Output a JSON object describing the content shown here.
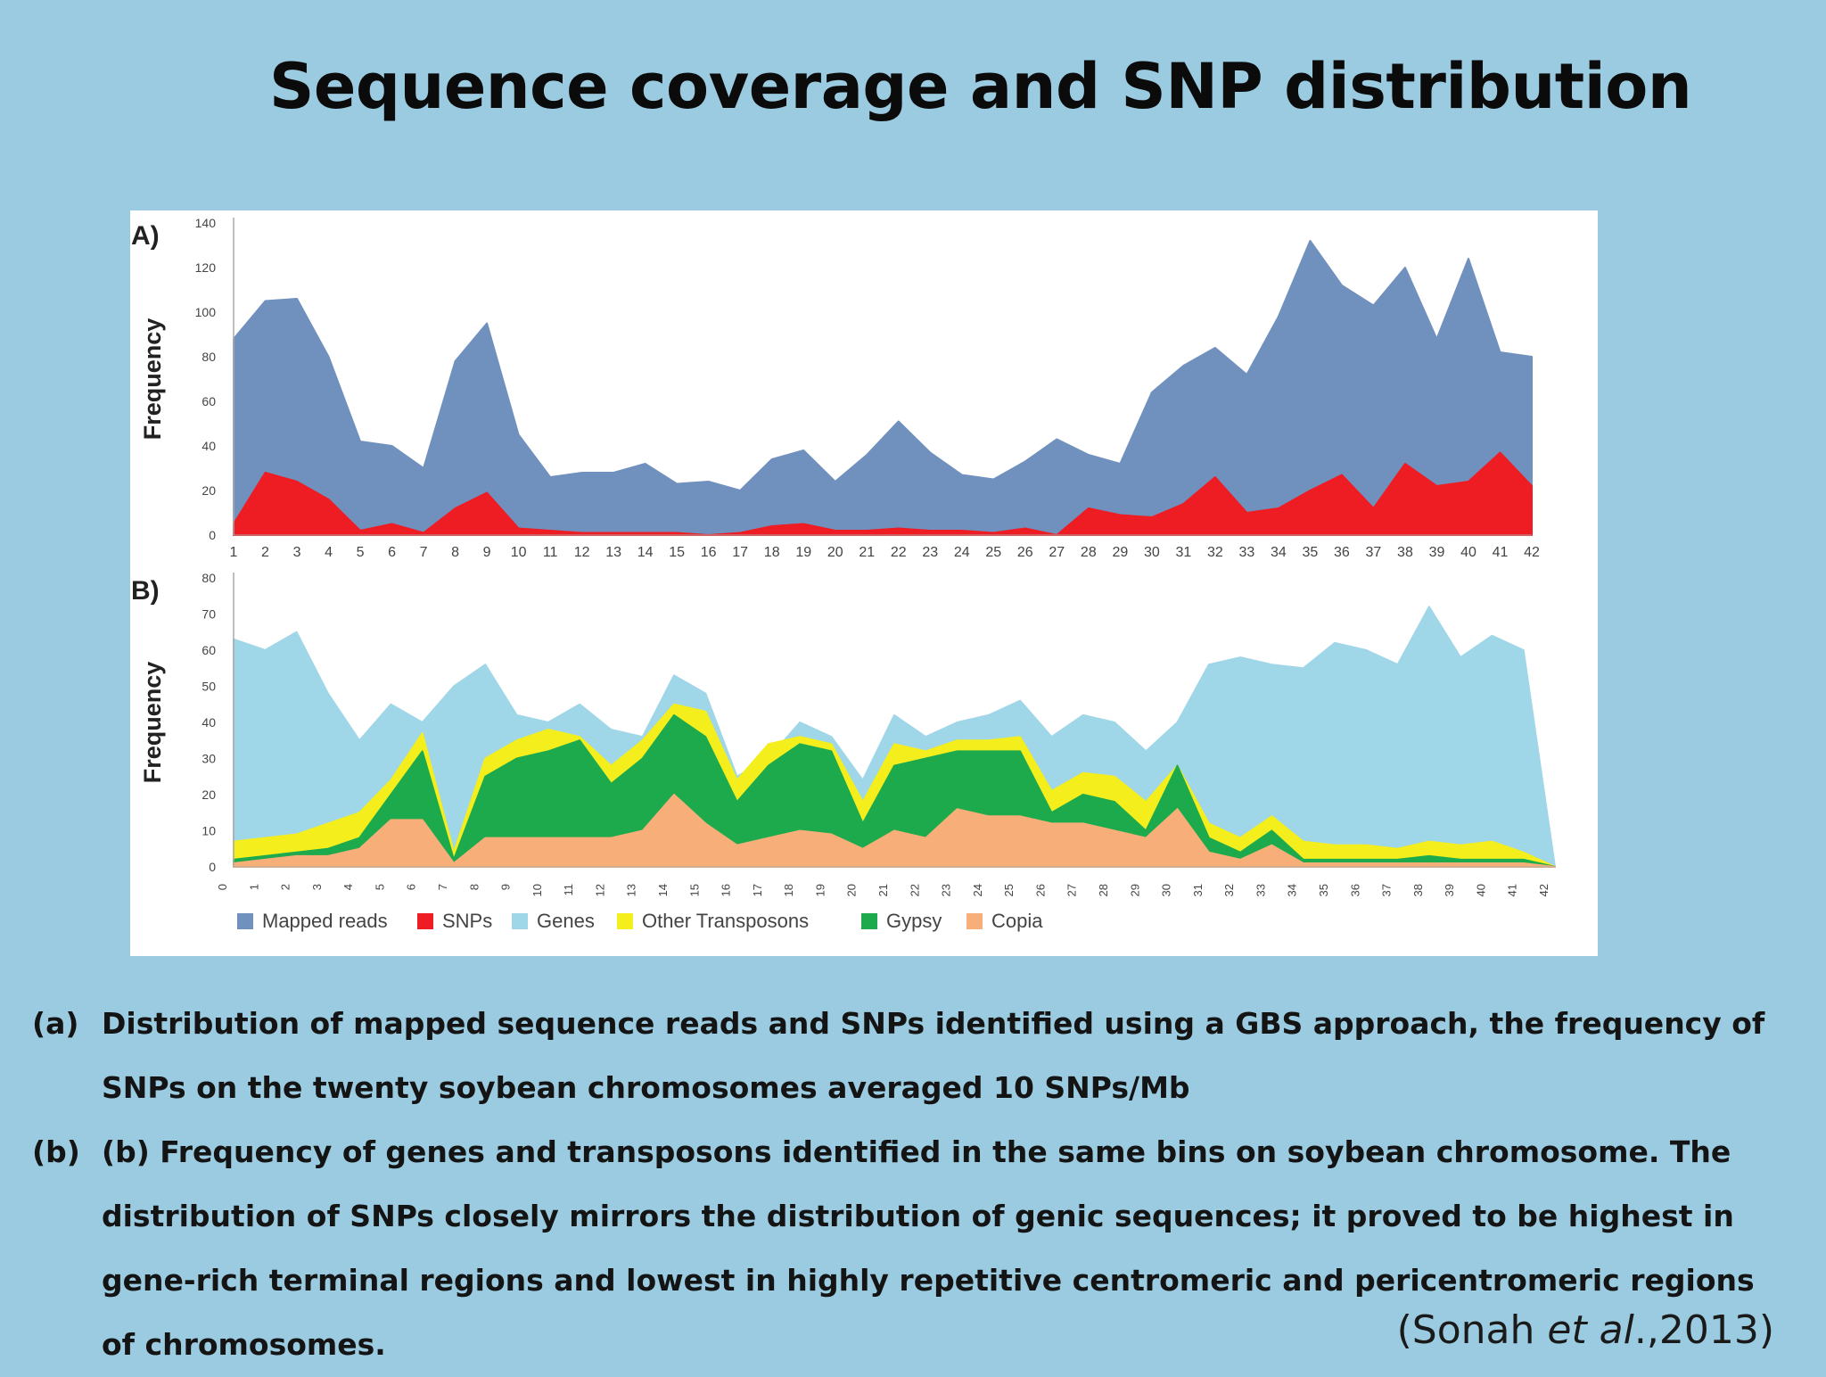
{
  "slide": {
    "title": "Sequence coverage and SNP distribution",
    "caption_a_label": "(a)",
    "caption_a": "Distribution of mapped sequence reads and SNPs identified using a GBS approach, the frequency of SNPs on the twenty soybean chromosomes averaged 10 SNPs/Mb",
    "caption_b_label": "(b)",
    "caption_b": "(b) Frequency of genes and transposons identified in the same bins on soybean chromosome. The distribution of SNPs closely mirrors  the distribution of genic sequences; it proved to be highest in gene-rich terminal regions and lowest in highly repetitive centromeric and pericentromeric regions of chromosomes.",
    "citation_open": "(Sonah ",
    "citation_etal": "et al",
    "citation_close": ".,2013)"
  },
  "colors": {
    "mapped_reads": "#7090be",
    "snps": "#ee1d23",
    "genes": "#9fd6e8",
    "other_transposons": "#f4ee1c",
    "gypsy": "#1daa4c",
    "copia": "#f7ae78"
  },
  "chart_data": [
    {
      "type": "area",
      "panel_label": "A)",
      "ylabel": "Frequency",
      "xlabel": "",
      "ylim": [
        0,
        140
      ],
      "yticks": [
        0,
        20,
        40,
        60,
        80,
        100,
        120,
        140
      ],
      "grid": false,
      "legend": "bottom",
      "x": [
        "1",
        "2",
        "3",
        "4",
        "5",
        "6",
        "7",
        "8",
        "9",
        "10",
        "11",
        "12",
        "13",
        "14",
        "15",
        "16",
        "17",
        "18",
        "19",
        "20",
        "21",
        "22",
        "23",
        "24",
        "25",
        "26",
        "27",
        "28",
        "29",
        "30",
        "31",
        "32",
        "33",
        "34",
        "35",
        "36",
        "37",
        "38",
        "39",
        "40",
        "41",
        "42"
      ],
      "series": [
        {
          "name": "Mapped reads",
          "values": [
            88,
            105,
            106,
            80,
            42,
            40,
            30,
            78,
            95,
            45,
            26,
            28,
            28,
            32,
            23,
            24,
            20,
            34,
            38,
            24,
            36,
            51,
            37,
            27,
            25,
            33,
            43,
            36,
            32,
            64,
            76,
            84,
            72,
            98,
            132,
            112,
            103,
            120,
            88,
            124,
            82,
            80
          ]
        },
        {
          "name": "SNPs",
          "values": [
            5,
            28,
            24,
            16,
            2,
            5,
            1,
            12,
            19,
            3,
            2,
            1,
            1,
            1,
            1,
            0,
            1,
            4,
            5,
            2,
            2,
            3,
            2,
            2,
            1,
            3,
            0,
            12,
            9,
            8,
            14,
            26,
            10,
            12,
            20,
            27,
            12,
            32,
            22,
            24,
            37,
            22
          ]
        }
      ]
    },
    {
      "type": "area",
      "panel_label": "B)",
      "ylabel": "Frequency",
      "xlabel": "",
      "ylim": [
        0,
        80
      ],
      "yticks": [
        0,
        10,
        20,
        30,
        40,
        50,
        60,
        70,
        80
      ],
      "grid": false,
      "legend": "bottom",
      "x": [
        "0",
        "1",
        "2",
        "3",
        "4",
        "5",
        "6",
        "7",
        "8",
        "9",
        "10",
        "11",
        "12",
        "13",
        "14",
        "15",
        "16",
        "17",
        "18",
        "19",
        "20",
        "21",
        "22",
        "23",
        "24",
        "25",
        "26",
        "27",
        "28",
        "29",
        "30",
        "31",
        "32",
        "33",
        "34",
        "35",
        "36",
        "37",
        "38",
        "39",
        "40",
        "41",
        "42"
      ],
      "series": [
        {
          "name": "Genes",
          "values": [
            63,
            60,
            65,
            48,
            35,
            45,
            40,
            50,
            56,
            42,
            40,
            45,
            38,
            36,
            53,
            48,
            25,
            30,
            40,
            36,
            24,
            42,
            36,
            40,
            42,
            46,
            36,
            42,
            40,
            32,
            40,
            56,
            58,
            56,
            55,
            62,
            60,
            56,
            72,
            58,
            64,
            60,
            0
          ]
        },
        {
          "name": "Other Transposons",
          "values": [
            7,
            8,
            9,
            12,
            15,
            24,
            37,
            4,
            30,
            35,
            38,
            36,
            28,
            35,
            45,
            43,
            24,
            34,
            36,
            34,
            18,
            34,
            32,
            35,
            35,
            36,
            21,
            26,
            25,
            18,
            28,
            12,
            8,
            14,
            7,
            6,
            6,
            5,
            7,
            6,
            7,
            4,
            0
          ]
        },
        {
          "name": "Gypsy",
          "values": [
            2,
            3,
            4,
            5,
            8,
            20,
            32,
            2,
            25,
            30,
            32,
            35,
            23,
            30,
            42,
            36,
            18,
            28,
            34,
            32,
            12,
            28,
            30,
            32,
            32,
            32,
            15,
            20,
            18,
            10,
            28,
            8,
            4,
            10,
            2,
            2,
            2,
            2,
            3,
            2,
            2,
            2,
            0
          ]
        },
        {
          "name": "Copia",
          "values": [
            1,
            2,
            3,
            3,
            5,
            13,
            13,
            1,
            8,
            8,
            8,
            8,
            8,
            10,
            20,
            12,
            6,
            8,
            10,
            9,
            5,
            10,
            8,
            16,
            14,
            14,
            12,
            12,
            10,
            8,
            16,
            4,
            2,
            6,
            1,
            1,
            1,
            1,
            1,
            1,
            1,
            1,
            0
          ]
        }
      ]
    }
  ],
  "legend": [
    {
      "label": "Mapped reads",
      "color_key": "mapped_reads"
    },
    {
      "label": "SNPs",
      "color_key": "snps"
    },
    {
      "label": "Genes",
      "color_key": "genes"
    },
    {
      "label": "Other  Transposons",
      "color_key": "other_transposons"
    },
    {
      "label": "Gypsy",
      "color_key": "gypsy"
    },
    {
      "label": "Copia",
      "color_key": "copia"
    }
  ]
}
